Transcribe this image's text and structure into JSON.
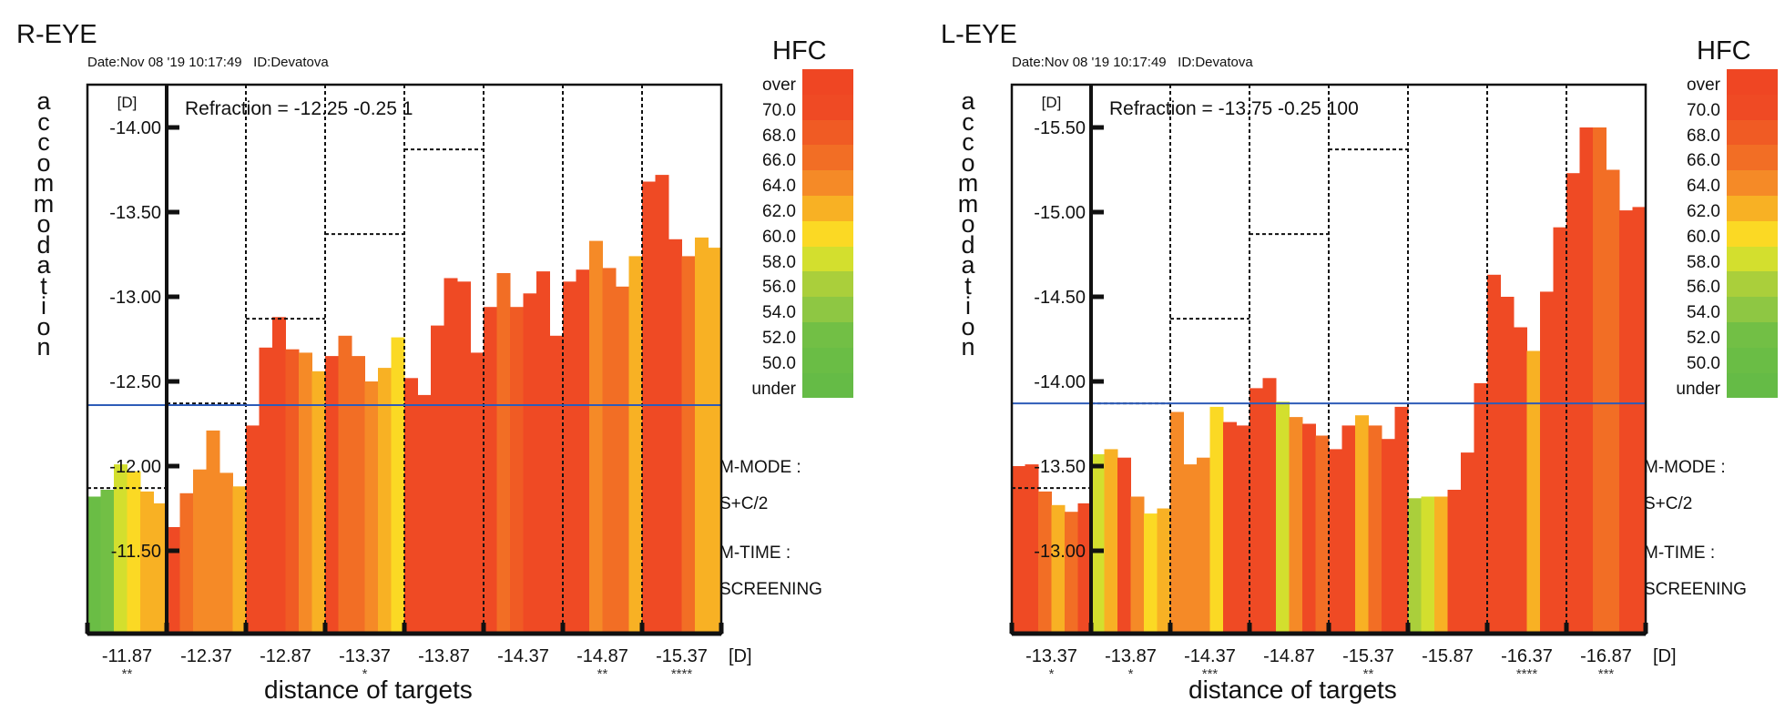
{
  "legend": {
    "title": "HFC",
    "labels": [
      "over",
      "70.0",
      "68.0",
      "66.0",
      "64.0",
      "62.0",
      "60.0",
      "58.0",
      "56.0",
      "54.0",
      "52.0",
      "50.0",
      "under"
    ],
    "colors": [
      "#ef4623",
      "#ef4a24",
      "#f05b24",
      "#f26e25",
      "#f58a27",
      "#f8b124",
      "#fbd924",
      "#d3df2e",
      "#aacf3b",
      "#8ec743",
      "#72bf45",
      "#6abd45",
      "#65bb46"
    ]
  },
  "side_info": {
    "mmode_label": "M-MODE :",
    "mmode_value": "S+C/2",
    "mtime_label": "M-TIME :",
    "mtime_value": "SCREENING"
  },
  "vertical_label": "accommodation",
  "x_title": "distance of targets",
  "x_unit": "[D]",
  "y_unit": "[D]",
  "chart_data": [
    {
      "type": "bar",
      "title": "R-EYE",
      "date": "Date:Nov 08 '19 10:17:49",
      "id": "ID:Devatova",
      "refraction": "Refraction = -12.25 -0.25   1",
      "ylabel": "accommodation",
      "xlabel": "distance of targets",
      "yticks": [
        "-14.00",
        "-13.50",
        "-13.00",
        "-12.50",
        "-12.00",
        "-11.50"
      ],
      "ylim": [
        -11.19,
        -14.26
      ],
      "reference_line": -12.36,
      "categories": [
        "-11.87",
        "-12.37",
        "-12.87",
        "-13.37",
        "-13.87",
        "-14.37",
        "-14.87",
        "-15.37"
      ],
      "stars": [
        "**",
        "",
        "",
        "*",
        "",
        "",
        "**",
        "****"
      ],
      "targets": [
        -11.87,
        -12.37,
        -12.87,
        -13.37,
        -13.87,
        -14.37,
        -14.87,
        -15.37
      ],
      "bars": [
        [
          -11.82,
          -11.86,
          -12.01,
          -11.97,
          -11.85,
          -11.78
        ],
        [
          -11.64,
          -11.84,
          -11.98,
          -12.21,
          -11.96,
          -11.88
        ],
        [
          -12.24,
          -12.7,
          -12.88,
          -12.69,
          -12.67,
          -12.56
        ],
        [
          -12.65,
          -12.77,
          -12.65,
          -12.5,
          -12.58,
          -12.76
        ],
        [
          -12.52,
          -12.42,
          -12.83,
          -13.11,
          -13.09,
          -12.67
        ],
        [
          -12.94,
          -13.14,
          -12.94,
          -13.02,
          -13.15,
          -12.77
        ],
        [
          -13.09,
          -13.16,
          -13.33,
          -13.17,
          -13.06,
          -13.24
        ],
        [
          -13.68,
          -13.72,
          -13.34,
          -13.24,
          -13.35,
          -13.29
        ]
      ],
      "hfc_class": [
        [
          11,
          10,
          7,
          6,
          5,
          5
        ],
        [
          1,
          3,
          4,
          4,
          4,
          5
        ],
        [
          1,
          1,
          1,
          2,
          4,
          5
        ],
        [
          1,
          3,
          3,
          4,
          5,
          6
        ],
        [
          1,
          1,
          1,
          1,
          1,
          1
        ],
        [
          1,
          3,
          2,
          1,
          1,
          1
        ],
        [
          1,
          1,
          4,
          3,
          3,
          5
        ],
        [
          1,
          1,
          1,
          3,
          5,
          5
        ]
      ]
    },
    {
      "type": "bar",
      "title": "L-EYE",
      "date": "Date:Nov 08 '19 10:17:49",
      "id": "ID:Devatova",
      "refraction": "Refraction = -13.75 -0.25 100",
      "ylabel": "accommodation",
      "xlabel": "distance of targets",
      "yticks": [
        "-15.50",
        "-15.00",
        "-14.50",
        "-14.00",
        "-13.50",
        "-13.00"
      ],
      "ylim": [
        -12.69,
        -15.76
      ],
      "reference_line": -13.87,
      "categories": [
        "-13.37",
        "-13.87",
        "-14.37",
        "-14.87",
        "-15.37",
        "-15.87",
        "-16.37",
        "-16.87"
      ],
      "stars": [
        "*",
        "*",
        "***",
        "",
        "**",
        "",
        "****",
        "***"
      ],
      "targets": [
        -13.37,
        -13.87,
        -14.37,
        -14.87,
        -15.37,
        -15.87,
        -16.37,
        -16.87
      ],
      "bars": [
        [
          -13.5,
          -13.51,
          -13.35,
          -13.27,
          -13.23,
          -13.28
        ],
        [
          -13.57,
          -13.6,
          -13.55,
          -13.32,
          -13.22,
          -13.25
        ],
        [
          -13.82,
          -13.51,
          -13.55,
          -13.85,
          -13.76,
          -13.74
        ],
        [
          -13.96,
          -14.02,
          -13.88,
          -13.79,
          -13.75,
          -13.68
        ],
        [
          -13.6,
          -13.74,
          -13.8,
          -13.74,
          -13.66,
          -13.85
        ],
        [
          -13.31,
          -13.32,
          -13.32,
          -13.36,
          -13.58,
          -13.99
        ],
        [
          -14.63,
          -14.5,
          -14.32,
          -14.18,
          -14.53,
          -14.91
        ],
        [
          -15.23,
          -15.5,
          -15.5,
          -15.25,
          -15.01,
          -15.03
        ]
      ],
      "hfc_class": [
        [
          1,
          1,
          3,
          5,
          3,
          1
        ],
        [
          7,
          5,
          1,
          4,
          6,
          5
        ],
        [
          4,
          4,
          4,
          6,
          1,
          1
        ],
        [
          1,
          1,
          7,
          4,
          1,
          3
        ],
        [
          1,
          1,
          5,
          3,
          1,
          1
        ],
        [
          8,
          7,
          5,
          1,
          1,
          1
        ],
        [
          1,
          1,
          1,
          5,
          1,
          1
        ],
        [
          1,
          1,
          3,
          3,
          1,
          1
        ]
      ]
    }
  ]
}
